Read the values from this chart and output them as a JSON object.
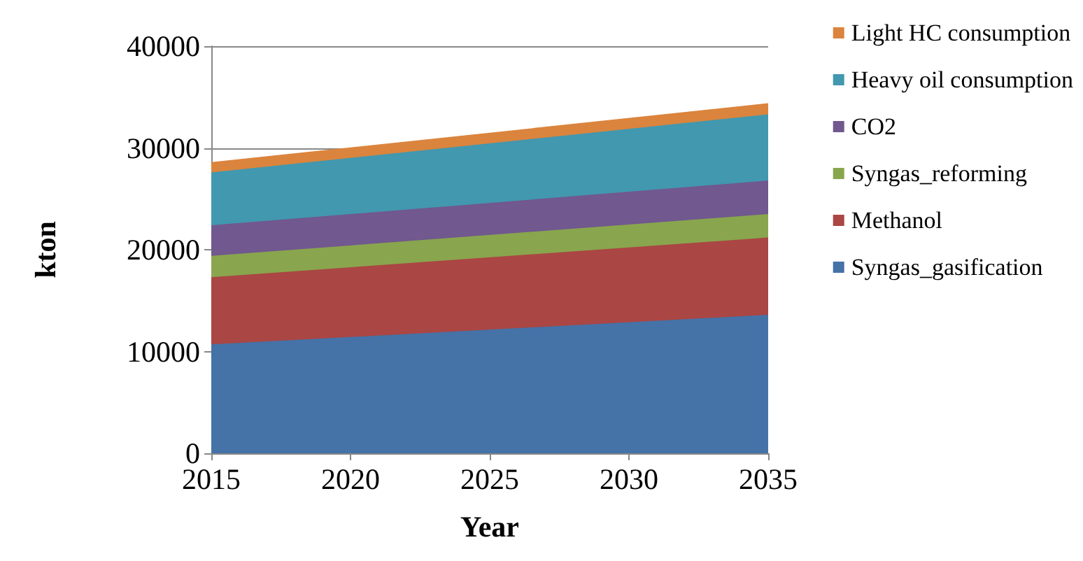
{
  "chart_data": {
    "type": "area",
    "stacked": true,
    "xlabel": "Year",
    "ylabel": "kton",
    "x": [
      2015,
      2035
    ],
    "xlim": [
      2015,
      2035
    ],
    "xticks": [
      2015,
      2020,
      2025,
      2030,
      2035
    ],
    "ylim": [
      0,
      40000
    ],
    "yticks": [
      0,
      10000,
      20000,
      30000,
      40000
    ],
    "grid": "y",
    "legend": "right",
    "series": [
      {
        "name": "Syngas_gasification",
        "color": "#4572a7",
        "values": [
          10700,
          13600
        ]
      },
      {
        "name": "Methanol",
        "color": "#aa4643",
        "values": [
          6600,
          7600
        ]
      },
      {
        "name": "Syngas_reforming",
        "color": "#89a54e",
        "values": [
          2100,
          2300
        ]
      },
      {
        "name": "CO2",
        "color": "#71588f",
        "values": [
          3000,
          3300
        ]
      },
      {
        "name": "Heavy oil consumption",
        "color": "#4198af",
        "values": [
          5200,
          6500
        ]
      },
      {
        "name": "Light HC consumption",
        "color": "#db843d",
        "values": [
          1000,
          1100
        ]
      }
    ]
  }
}
